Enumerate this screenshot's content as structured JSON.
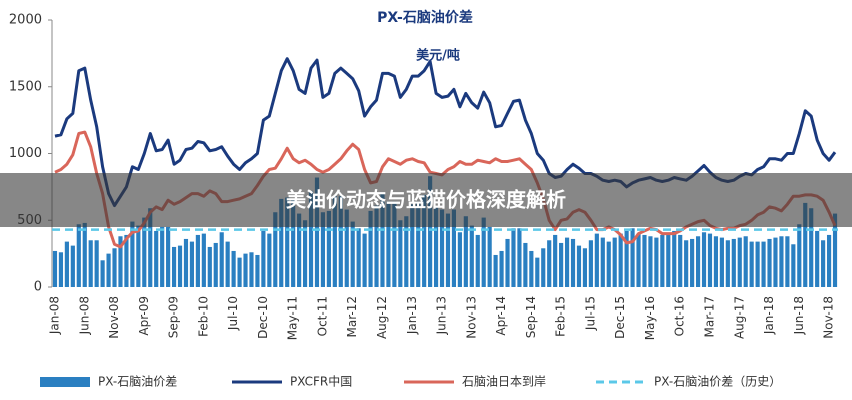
{
  "overlay_title": "美油价动态与蓝猫价格深度解析",
  "chart_data": {
    "type": "combo",
    "title": "PX-石脑油价差",
    "subtitle": "美元/吨",
    "categories": [
      "Jan-08",
      null,
      null,
      null,
      null,
      "Jun-08",
      null,
      null,
      null,
      null,
      "Nov-08",
      null,
      null,
      null,
      null,
      "Apr-09",
      null,
      null,
      null,
      null,
      "Sep-09",
      null,
      null,
      null,
      null,
      "Feb-10",
      null,
      null,
      null,
      null,
      "Jul-10",
      null,
      null,
      null,
      null,
      "Dec-10",
      null,
      null,
      null,
      null,
      "May-11",
      null,
      null,
      null,
      null,
      "Oct-11",
      null,
      null,
      null,
      null,
      "Mar-12",
      null,
      null,
      null,
      null,
      "Aug-12",
      null,
      null,
      null,
      null,
      "Jan-13",
      null,
      null,
      null,
      null,
      "Jun-13",
      null,
      null,
      null,
      null,
      "Nov-13",
      null,
      null,
      null,
      null,
      "Apr-14",
      null,
      null,
      null,
      null,
      "Sep-14",
      null,
      null,
      null,
      null,
      "Feb-15",
      null,
      null,
      null,
      null,
      "Jul-15",
      null,
      null,
      null,
      null,
      "Dec-15",
      null,
      null,
      null,
      null,
      "May-16",
      null,
      null,
      null,
      null,
      "Oct-16",
      null,
      null,
      null,
      null,
      "Mar-17",
      null,
      null,
      null,
      null,
      "Aug-17",
      null,
      null,
      null,
      null,
      "Jan-18",
      null,
      null,
      null,
      null,
      "Jun-18",
      null,
      null,
      null,
      null,
      "Nov-18",
      null
    ],
    "ylim": [
      0,
      2000
    ],
    "yticks": [
      0,
      500,
      1000,
      1500,
      2000
    ],
    "series": [
      {
        "name": "PX-石脑油价差",
        "type": "bar",
        "color": "#2a7fc1",
        "values": [
          270,
          260,
          340,
          310,
          470,
          480,
          350,
          350,
          200,
          250,
          290,
          380,
          390,
          490,
          460,
          520,
          590,
          420,
          450,
          450,
          300,
          310,
          360,
          340,
          390,
          400,
          300,
          330,
          410,
          340,
          270,
          220,
          250,
          260,
          240,
          420,
          400,
          560,
          660,
          670,
          660,
          550,
          500,
          720,
          820,
          560,
          570,
          680,
          680,
          580,
          490,
          440,
          400,
          570,
          610,
          700,
          640,
          640,
          500,
          530,
          620,
          640,
          690,
          830,
          600,
          580,
          550,
          580,
          410,
          530,
          460,
          390,
          520,
          450,
          240,
          270,
          360,
          440,
          440,
          330,
          270,
          220,
          290,
          350,
          390,
          330,
          370,
          360,
          310,
          290,
          350,
          400,
          370,
          340,
          370,
          400,
          420,
          440,
          400,
          390,
          380,
          370,
          390,
          400,
          420,
          390,
          350,
          360,
          380,
          410,
          400,
          380,
          370,
          350,
          360,
          370,
          380,
          340,
          340,
          340,
          360,
          370,
          380,
          380,
          320,
          470,
          630,
          590,
          420,
          350,
          390,
          550
        ]
      },
      {
        "name": "PXCFR中国",
        "type": "line",
        "color": "#1b3a7e",
        "values": [
          1130,
          1140,
          1260,
          1300,
          1620,
          1640,
          1400,
          1200,
          900,
          700,
          610,
          680,
          750,
          900,
          880,
          1000,
          1150,
          1020,
          1030,
          1100,
          920,
          950,
          1030,
          1040,
          1090,
          1080,
          1020,
          1030,
          1050,
          980,
          920,
          880,
          930,
          960,
          1000,
          1250,
          1280,
          1450,
          1620,
          1710,
          1620,
          1480,
          1450,
          1640,
          1700,
          1420,
          1450,
          1600,
          1640,
          1600,
          1560,
          1470,
          1280,
          1350,
          1400,
          1600,
          1600,
          1580,
          1420,
          1480,
          1580,
          1580,
          1620,
          1690,
          1450,
          1420,
          1430,
          1480,
          1350,
          1450,
          1380,
          1340,
          1460,
          1380,
          1200,
          1210,
          1300,
          1390,
          1400,
          1250,
          1150,
          1000,
          950,
          850,
          820,
          830,
          880,
          920,
          890,
          850,
          850,
          830,
          800,
          790,
          800,
          790,
          750,
          780,
          800,
          810,
          820,
          800,
          790,
          800,
          820,
          810,
          800,
          830,
          870,
          910,
          860,
          820,
          800,
          790,
          800,
          830,
          850,
          840,
          880,
          900,
          960,
          960,
          950,
          1000,
          1000,
          1150,
          1320,
          1280,
          1100,
          1000,
          950,
          1010
        ]
      },
      {
        "name": "石脑油日本到岸",
        "type": "line",
        "color": "#d9665a",
        "values": [
          860,
          880,
          920,
          990,
          1150,
          1160,
          1050,
          850,
          700,
          450,
          320,
          300,
          360,
          410,
          420,
          480,
          560,
          600,
          580,
          650,
          620,
          640,
          670,
          700,
          700,
          680,
          720,
          700,
          640,
          640,
          650,
          660,
          680,
          700,
          760,
          830,
          880,
          890,
          960,
          1040,
          960,
          930,
          950,
          920,
          880,
          860,
          880,
          920,
          960,
          1020,
          1070,
          1030,
          880,
          780,
          790,
          900,
          960,
          940,
          920,
          950,
          960,
          940,
          930,
          860,
          850,
          840,
          880,
          900,
          940,
          920,
          920,
          950,
          940,
          930,
          960,
          940,
          940,
          950,
          960,
          920,
          880,
          780,
          660,
          500,
          430,
          500,
          510,
          560,
          580,
          560,
          500,
          430,
          430,
          450,
          430,
          390,
          330,
          340,
          400,
          420,
          440,
          430,
          400,
          400,
          400,
          420,
          450,
          470,
          490,
          500,
          460,
          440,
          430,
          440,
          440,
          460,
          470,
          500,
          540,
          560,
          600,
          590,
          570,
          620,
          680,
          680,
          690,
          690,
          680,
          650,
          560,
          460
        ]
      },
      {
        "name": "PX-石脑油价差（历史）",
        "type": "hline",
        "color": "#5bc8e8",
        "value": 430
      }
    ]
  }
}
